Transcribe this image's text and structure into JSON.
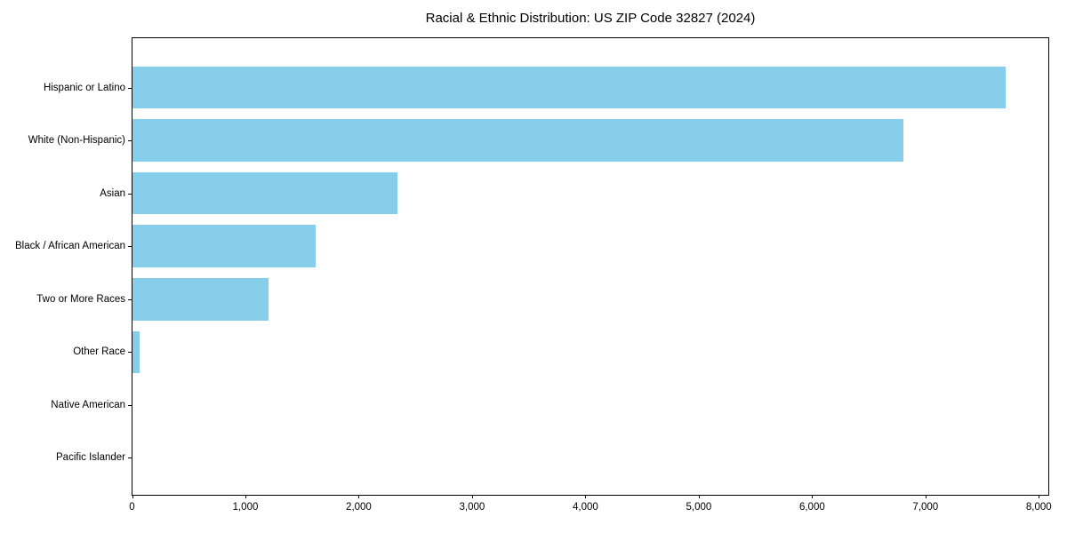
{
  "chart_data": {
    "type": "bar",
    "orientation": "horizontal",
    "title": "Racial & Ethnic Distribution: US ZIP Code 32827 (2024)",
    "categories": [
      "Hispanic or Latino",
      "White (Non-Hispanic)",
      "Asian",
      "Black / African American",
      "Two or More Races",
      "Other Race",
      "Native American",
      "Pacific Islander"
    ],
    "values": [
      7700,
      6800,
      2335,
      1615,
      1200,
      60,
      0,
      0
    ],
    "xlabel": "",
    "ylabel": "",
    "xlim": [
      0,
      8080
    ],
    "xticks": [
      0,
      1000,
      2000,
      3000,
      4000,
      5000,
      6000,
      7000,
      8000
    ],
    "xtick_labels": [
      "0",
      "1,000",
      "2,000",
      "3,000",
      "4,000",
      "5,000",
      "6,000",
      "7,000",
      "8,000"
    ],
    "bar_color": "#87CEEB",
    "frame_color": "#000000",
    "grid": false,
    "legend": null
  }
}
